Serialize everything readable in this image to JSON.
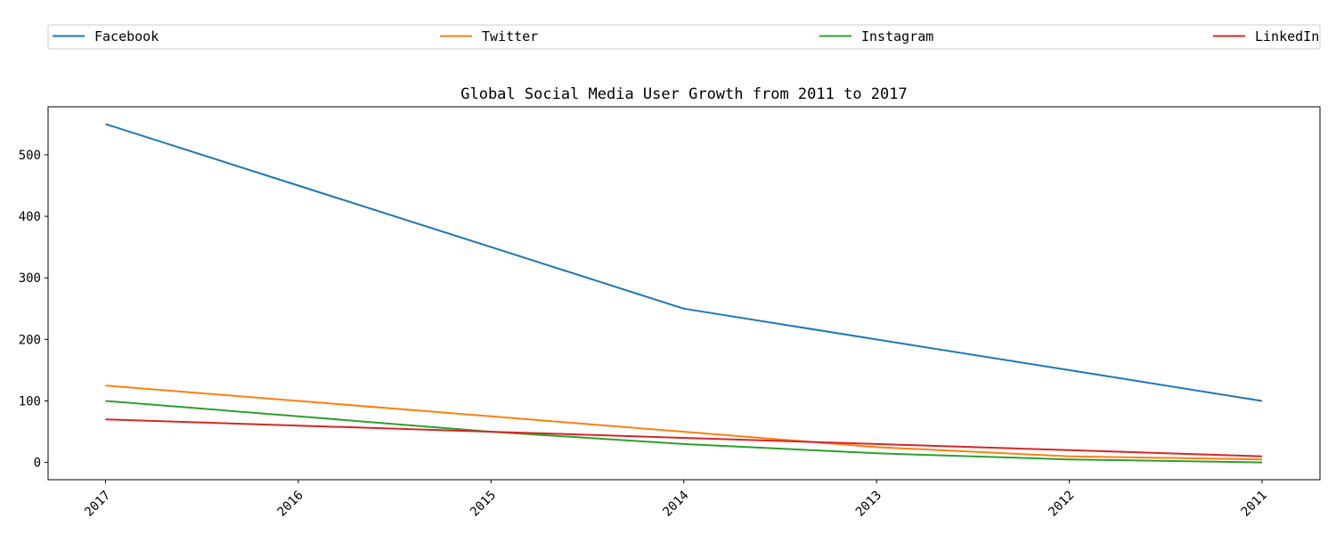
{
  "chart_data": {
    "type": "line",
    "title": "Global Social Media User Growth from 2011 to 2017",
    "xlabel": "",
    "ylabel": "",
    "categories": [
      "2017",
      "2016",
      "2015",
      "2014",
      "2013",
      "2012",
      "2011"
    ],
    "ylim": [
      -28,
      578
    ],
    "yticks": [
      0,
      100,
      200,
      300,
      400,
      500
    ],
    "grid": false,
    "legend_position": "top",
    "series": [
      {
        "name": "Facebook",
        "color": "#1f77b4",
        "values": [
          550,
          450,
          350,
          250,
          200,
          150,
          100
        ]
      },
      {
        "name": "Twitter",
        "color": "#ff7f0e",
        "values": [
          125,
          100,
          75,
          50,
          25,
          10,
          5
        ]
      },
      {
        "name": "Instagram",
        "color": "#2ca02c",
        "values": [
          100,
          75,
          50,
          30,
          15,
          5,
          0
        ]
      },
      {
        "name": "LinkedIn",
        "color": "#d62728",
        "values": [
          70,
          60,
          50,
          40,
          30,
          20,
          10
        ]
      }
    ]
  }
}
